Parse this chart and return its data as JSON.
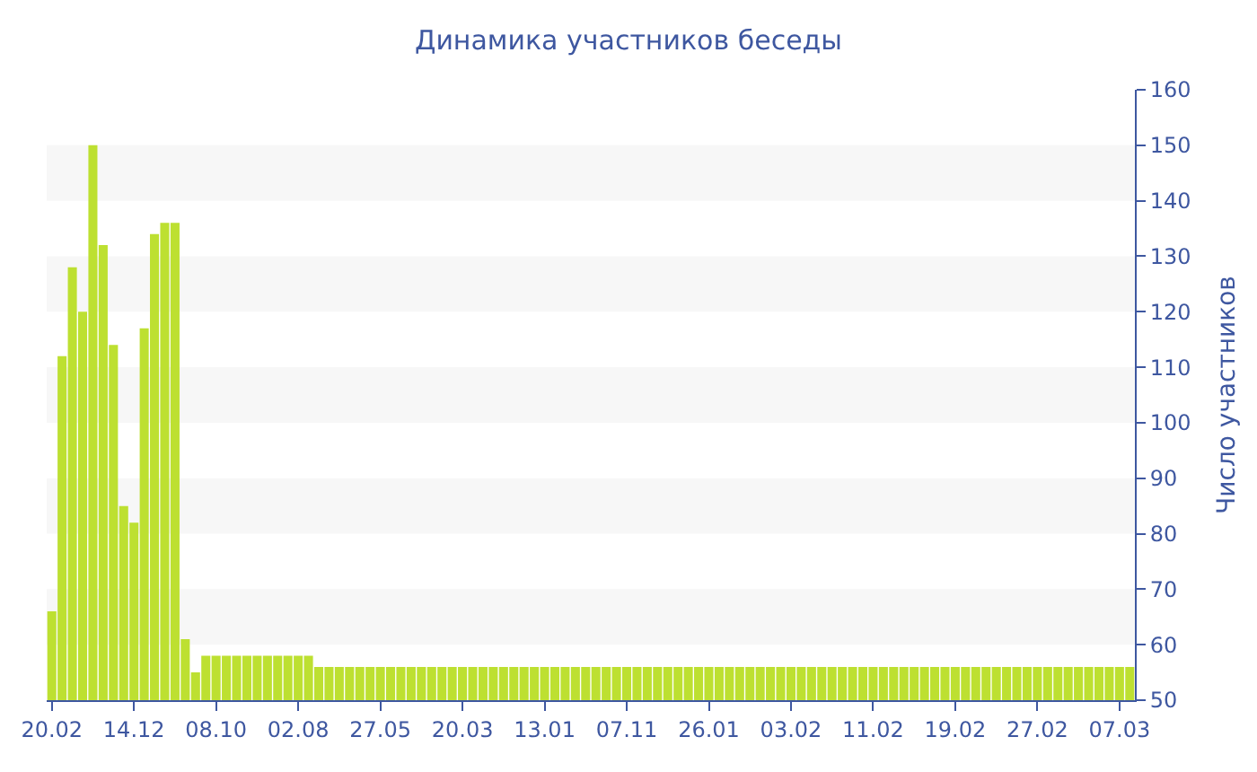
{
  "chart_data": {
    "type": "bar",
    "title": "Динамика участников беседы",
    "ylabel": "Число участников",
    "categories": [
      "20.02",
      null,
      null,
      null,
      null,
      null,
      null,
      null,
      "14.12",
      null,
      null,
      null,
      null,
      null,
      null,
      null,
      "08.10",
      null,
      null,
      null,
      null,
      null,
      null,
      null,
      "02.08",
      null,
      null,
      null,
      null,
      null,
      null,
      null,
      "27.05",
      null,
      null,
      null,
      null,
      null,
      null,
      null,
      "20.03",
      null,
      null,
      null,
      null,
      null,
      null,
      null,
      "13.01",
      null,
      null,
      null,
      null,
      null,
      null,
      null,
      "07.11",
      null,
      null,
      null,
      null,
      null,
      null,
      null,
      "26.01",
      null,
      null,
      null,
      null,
      null,
      null,
      null,
      "03.02",
      null,
      null,
      null,
      null,
      null,
      null,
      null,
      "11.02",
      null,
      null,
      null,
      null,
      null,
      null,
      null,
      "19.02",
      null,
      null,
      null,
      null,
      null,
      null,
      null,
      "27.02",
      null,
      null,
      null,
      null,
      null,
      null,
      null,
      "07.03",
      null
    ],
    "values": [
      66,
      112,
      128,
      120,
      150,
      132,
      114,
      85,
      82,
      117,
      134,
      136,
      136,
      61,
      55,
      58,
      58,
      58,
      58,
      58,
      58,
      58,
      58,
      58,
      58,
      58,
      56,
      56,
      56,
      56,
      56,
      56,
      56,
      56,
      56,
      56,
      56,
      56,
      56,
      56,
      56,
      56,
      56,
      56,
      56,
      56,
      56,
      56,
      56,
      56,
      56,
      56,
      56,
      56,
      56,
      56,
      56,
      56,
      56,
      56,
      56,
      56,
      56,
      56,
      56,
      56,
      56,
      56,
      56,
      56,
      56,
      56,
      56,
      56,
      56,
      56,
      56,
      56,
      56,
      56,
      56,
      56,
      56,
      56,
      56,
      56,
      56,
      56,
      56,
      56,
      56,
      56,
      56,
      56,
      56,
      56,
      56,
      56,
      56,
      56,
      56,
      56,
      56,
      56,
      56,
      56
    ],
    "color": "#bde031",
    "ylim": [
      50,
      160
    ],
    "yticks": [
      50,
      60,
      70,
      80,
      90,
      100,
      110,
      120,
      130,
      140,
      150,
      160
    ],
    "bands": [
      {
        "axis": "y",
        "from": 60,
        "to": 70,
        "color": "#f7f7f7"
      },
      {
        "axis": "y",
        "from": 80,
        "to": 90,
        "color": "#f7f7f7"
      },
      {
        "axis": "y",
        "from": 100,
        "to": 110,
        "color": "#f7f7f7"
      },
      {
        "axis": "y",
        "from": 120,
        "to": 130,
        "color": "#f7f7f7"
      },
      {
        "axis": "y",
        "from": 140,
        "to": 150,
        "color": "#f7f7f7"
      }
    ],
    "grid": false
  }
}
